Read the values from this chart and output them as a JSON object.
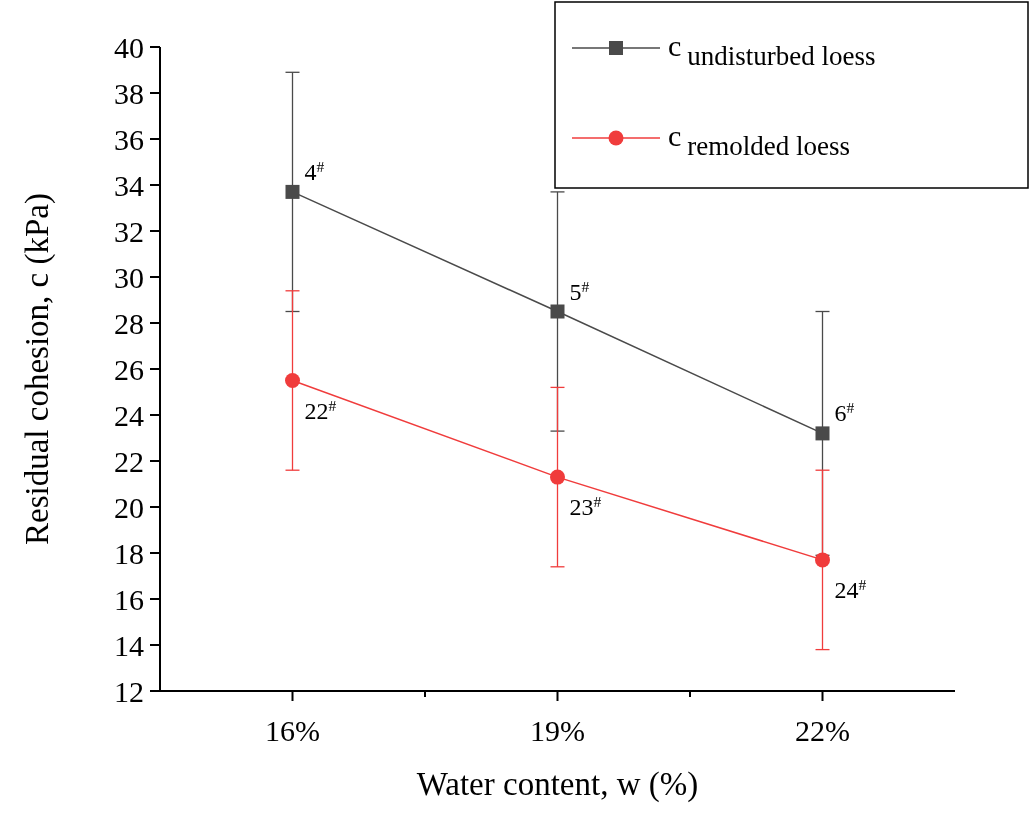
{
  "chart_data": {
    "type": "line",
    "xlabel": "Water content, w (%)",
    "ylabel": "Residual cohesion, c (kPa)",
    "x": [
      16,
      19,
      22
    ],
    "xlim": [
      14.5,
      23.5
    ],
    "xticks": [
      {
        "value": 16,
        "label": "16%"
      },
      {
        "value": 17.5,
        "label": null
      },
      {
        "value": 19,
        "label": "19%"
      },
      {
        "value": 20.5,
        "label": null
      },
      {
        "value": 22,
        "label": "22%"
      }
    ],
    "ylim": [
      12,
      40
    ],
    "yticks": [
      12,
      14,
      16,
      18,
      20,
      22,
      24,
      26,
      28,
      30,
      32,
      34,
      36,
      38,
      40
    ],
    "series": [
      {
        "name": "c$_{undisturbed loess}$",
        "color": "#4a4a4a",
        "marker": "square",
        "values": [
          33.7,
          28.5,
          23.2
        ],
        "errors": [
          5.2,
          5.2,
          5.3
        ]
      },
      {
        "name": "c$_{remolded loess}$",
        "color": "#f03c3c",
        "marker": "circle",
        "values": [
          25.5,
          21.3,
          17.7
        ],
        "errors": [
          3.9,
          3.9,
          3.9
        ]
      }
    ],
    "annotations": [
      {
        "text": "4$^{#}$",
        "x": 16,
        "y": 33.7
      },
      {
        "text": "5$^{#}$",
        "x": 19,
        "y": 28.5
      },
      {
        "text": "6$^{#}$",
        "x": 22,
        "y": 23.2
      },
      {
        "text": "22$^{#}$",
        "x": 16,
        "y": 25.5
      },
      {
        "text": "23$^{#}$",
        "x": 19,
        "y": 21.3
      },
      {
        "text": "24$^{#}$",
        "x": 22,
        "y": 17.7
      }
    ],
    "legend": "top right",
    "grid": false
  }
}
